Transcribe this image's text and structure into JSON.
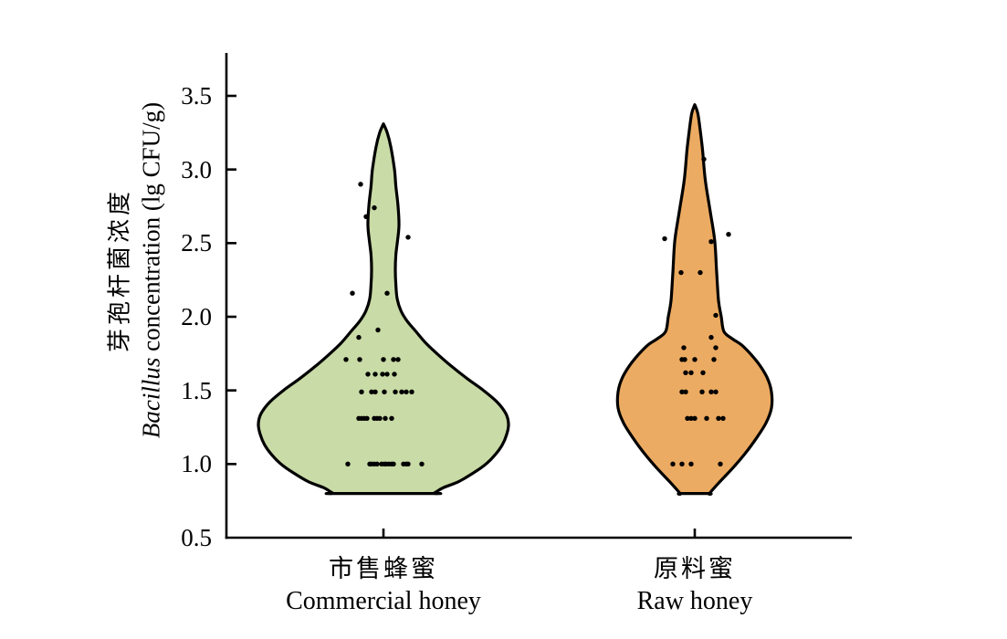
{
  "chart_data": {
    "type": "violin",
    "orientation": "vertical",
    "grid": false,
    "legend": false,
    "ylabel_zh": "芽孢杆菌浓度",
    "ylabel_en_italic": "Bacillus",
    "ylabel_en_rest": " concentration (lg CFU/g)",
    "ylim": [
      0.5,
      3.5
    ],
    "y_ticks": [
      "3.5",
      "3.0",
      "2.5",
      "2.0",
      "1.5",
      "1.0",
      "0.5"
    ],
    "categories": [
      {
        "zh": "市售蜂蜜",
        "en": "Commercial honey"
      },
      {
        "zh": "原料蜜",
        "en": "Raw honey"
      }
    ],
    "series": [
      {
        "name": "Commercial honey",
        "name_zh": "市售蜂蜜",
        "fill": "#c9dba6",
        "stroke": "#000000",
        "n": 50,
        "profile": [
          [
            3.31,
            0.0
          ],
          [
            3.25,
            0.03
          ],
          [
            3.15,
            0.06
          ],
          [
            3.0,
            0.088
          ],
          [
            2.88,
            0.1
          ],
          [
            2.75,
            0.117
          ],
          [
            2.62,
            0.124
          ],
          [
            2.52,
            0.113
          ],
          [
            2.42,
            0.099
          ],
          [
            2.32,
            0.095
          ],
          [
            2.22,
            0.099
          ],
          [
            2.12,
            0.11
          ],
          [
            2.04,
            0.14
          ],
          [
            1.97,
            0.19
          ],
          [
            1.9,
            0.26
          ],
          [
            1.82,
            0.34
          ],
          [
            1.74,
            0.44
          ],
          [
            1.66,
            0.55
          ],
          [
            1.58,
            0.67
          ],
          [
            1.5,
            0.8
          ],
          [
            1.42,
            0.91
          ],
          [
            1.34,
            0.98
          ],
          [
            1.27,
            1.0
          ],
          [
            1.2,
            0.985
          ],
          [
            1.13,
            0.95
          ],
          [
            1.06,
            0.89
          ],
          [
            1.0,
            0.82
          ],
          [
            0.94,
            0.72
          ],
          [
            0.88,
            0.6
          ],
          [
            0.84,
            0.48
          ],
          [
            0.81,
            0.42
          ],
          [
            0.8,
            0.4
          ]
        ],
        "points": [
          [
            2.9,
            -25
          ],
          [
            2.74,
            -10
          ],
          [
            2.68,
            -19
          ],
          [
            2.54,
            27
          ],
          [
            2.16,
            -34
          ],
          [
            2.16,
            4
          ],
          [
            1.91,
            -6
          ],
          [
            1.86,
            -27
          ],
          [
            1.71,
            -41
          ],
          [
            1.71,
            -26
          ],
          [
            1.71,
            0
          ],
          [
            1.71,
            11
          ],
          [
            1.71,
            16
          ],
          [
            1.61,
            -17
          ],
          [
            1.61,
            -9
          ],
          [
            1.61,
            -1
          ],
          [
            1.61,
            4
          ],
          [
            1.61,
            12
          ],
          [
            1.49,
            -24
          ],
          [
            1.49,
            -13
          ],
          [
            1.49,
            -9
          ],
          [
            1.49,
            1
          ],
          [
            1.49,
            13
          ],
          [
            1.49,
            20
          ],
          [
            1.49,
            25
          ],
          [
            1.49,
            31
          ],
          [
            1.31,
            -27
          ],
          [
            1.31,
            -24
          ],
          [
            1.31,
            -21
          ],
          [
            1.31,
            -18
          ],
          [
            1.31,
            -10
          ],
          [
            1.31,
            -7
          ],
          [
            1.31,
            -4
          ],
          [
            1.31,
            2
          ],
          [
            1.31,
            9
          ],
          [
            1.0,
            -39
          ],
          [
            1.0,
            -15
          ],
          [
            1.0,
            -13
          ],
          [
            1.0,
            -10
          ],
          [
            1.0,
            -7
          ],
          [
            1.0,
            -2
          ],
          [
            1.0,
            1
          ],
          [
            1.0,
            3
          ],
          [
            1.0,
            6
          ],
          [
            1.0,
            9
          ],
          [
            1.0,
            11
          ],
          [
            1.0,
            22
          ],
          [
            1.0,
            25
          ],
          [
            1.0,
            27
          ],
          [
            1.0,
            42
          ]
        ]
      },
      {
        "name": "Raw honey",
        "name_zh": "原料蜜",
        "fill": "#ecab62",
        "stroke": "#000000",
        "n": 32,
        "profile": [
          [
            3.44,
            0.0
          ],
          [
            3.38,
            0.04
          ],
          [
            3.25,
            0.075
          ],
          [
            3.14,
            0.1
          ],
          [
            2.93,
            0.137
          ],
          [
            2.72,
            0.2
          ],
          [
            2.52,
            0.26
          ],
          [
            2.31,
            0.285
          ],
          [
            2.11,
            0.31
          ],
          [
            2.0,
            0.345
          ],
          [
            1.9,
            0.38
          ],
          [
            1.85,
            0.49
          ],
          [
            1.8,
            0.63
          ],
          [
            1.69,
            0.82
          ],
          [
            1.59,
            0.94
          ],
          [
            1.49,
            1.0
          ],
          [
            1.38,
            1.0
          ],
          [
            1.28,
            0.93
          ],
          [
            1.18,
            0.81
          ],
          [
            1.07,
            0.655
          ],
          [
            0.97,
            0.49
          ],
          [
            0.87,
            0.31
          ],
          [
            0.8,
            0.19
          ]
        ],
        "points": [
          [
            3.07,
            10
          ],
          [
            2.56,
            37
          ],
          [
            2.53,
            -33
          ],
          [
            2.51,
            18
          ],
          [
            2.3,
            -15
          ],
          [
            2.3,
            6
          ],
          [
            2.01,
            23
          ],
          [
            1.86,
            18
          ],
          [
            1.79,
            -12
          ],
          [
            1.79,
            23
          ],
          [
            1.71,
            -14
          ],
          [
            1.71,
            -11
          ],
          [
            1.71,
            0
          ],
          [
            1.71,
            21
          ],
          [
            1.62,
            -10
          ],
          [
            1.62,
            -4
          ],
          [
            1.62,
            9
          ],
          [
            1.49,
            -14
          ],
          [
            1.49,
            -10
          ],
          [
            1.49,
            8
          ],
          [
            1.49,
            18
          ],
          [
            1.49,
            23
          ],
          [
            1.31,
            -8
          ],
          [
            1.31,
            -4
          ],
          [
            1.31,
            0
          ],
          [
            1.31,
            13
          ],
          [
            1.31,
            26
          ],
          [
            1.31,
            31
          ],
          [
            1.0,
            -24
          ],
          [
            1.0,
            -14
          ],
          [
            1.0,
            -4
          ],
          [
            1.0,
            28
          ]
        ]
      }
    ]
  }
}
